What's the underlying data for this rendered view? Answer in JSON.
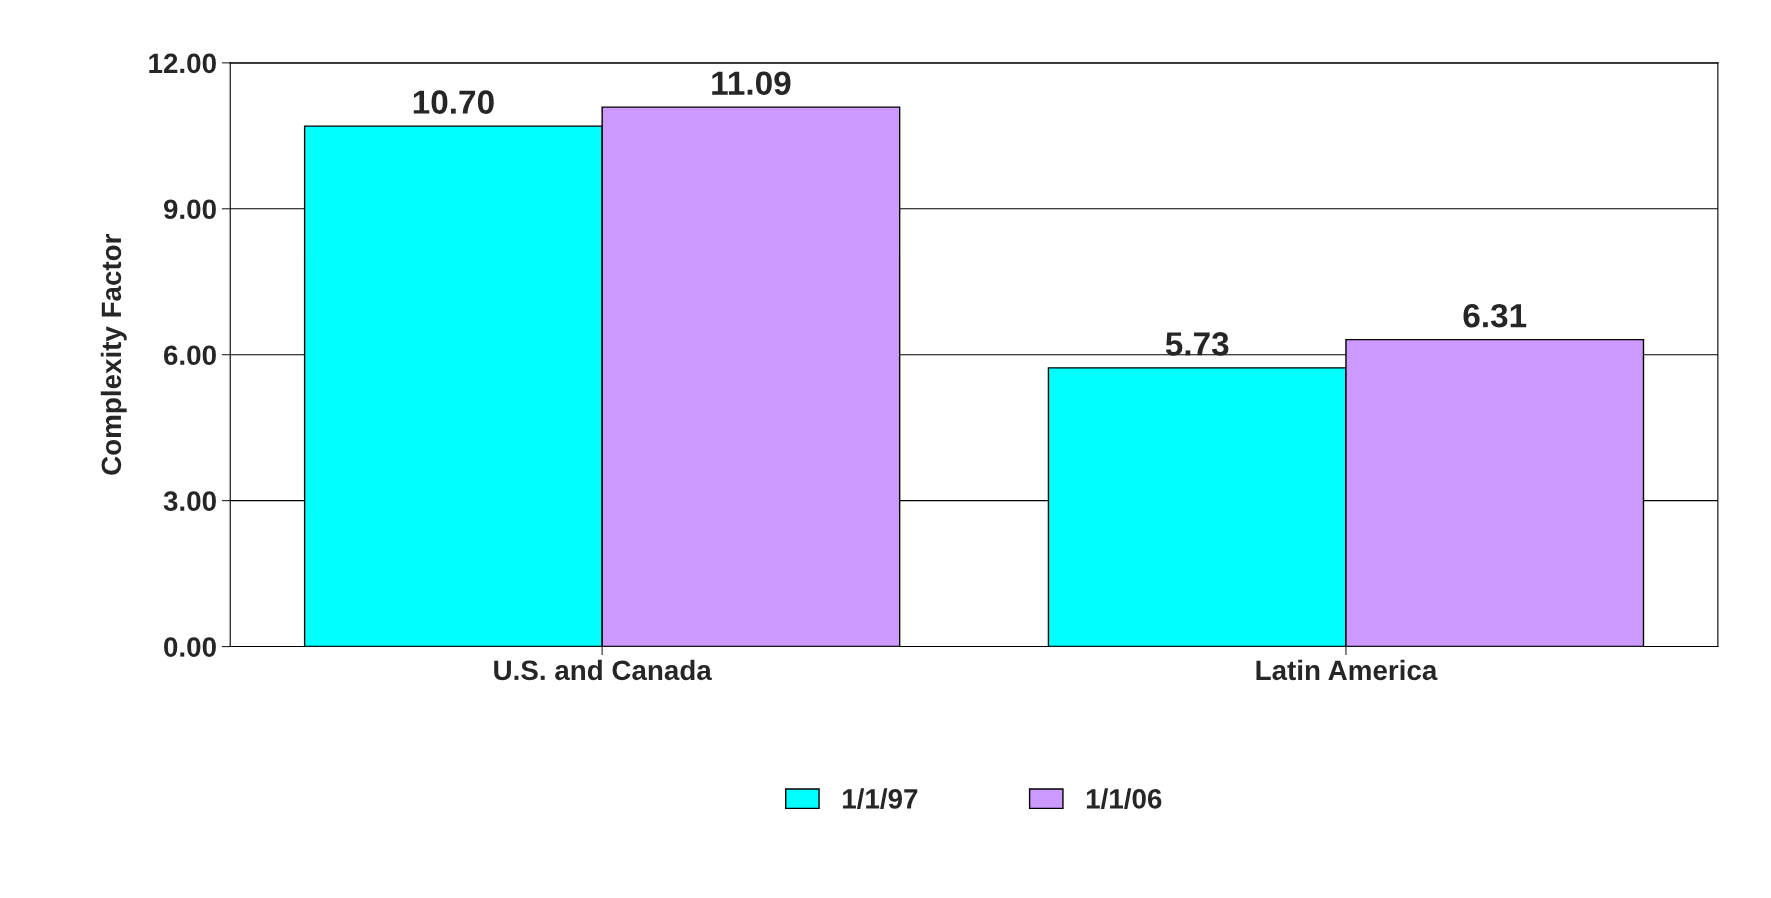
{
  "chart_data": {
    "type": "bar",
    "ylabel": "Complexity Factor",
    "categories": [
      "U.S. and Canada",
      "Latin America"
    ],
    "series": [
      {
        "name": "1/1/97",
        "color": "#00ffff",
        "values": [
          10.7,
          5.73
        ],
        "value_labels": [
          "10.70",
          "5.73"
        ]
      },
      {
        "name": "1/1/06",
        "color": "#cc99ff",
        "values": [
          11.09,
          6.31
        ],
        "value_labels": [
          "11.09",
          "6.31"
        ]
      }
    ],
    "ylim": [
      0,
      12
    ],
    "yticks": [
      {
        "value": 0,
        "label": "0.00"
      },
      {
        "value": 3,
        "label": "3.00"
      },
      {
        "value": 6,
        "label": "6.00"
      },
      {
        "value": 9,
        "label": "9.00"
      },
      {
        "value": 12,
        "label": "12.00"
      }
    ],
    "grid": "y",
    "legend": "bottom"
  }
}
